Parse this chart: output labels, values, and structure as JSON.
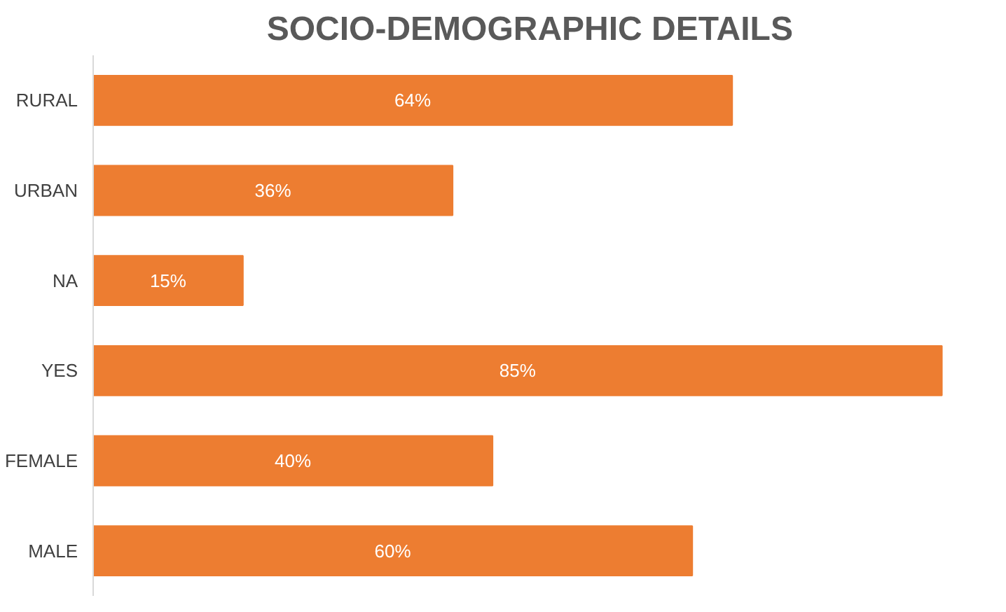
{
  "chart_data": {
    "type": "bar",
    "orientation": "horizontal",
    "title": "SOCIO-DEMOGRAPHIC  DETAILS",
    "categories": [
      "RURAL",
      "URBAN",
      "NA",
      "YES",
      "FEMALE",
      "MALE"
    ],
    "values": [
      64,
      36,
      15,
      85,
      40,
      60
    ],
    "value_labels": [
      "64%",
      "36%",
      "15%",
      "85%",
      "40%",
      "60%"
    ],
    "color": "#ed7d31"
  }
}
